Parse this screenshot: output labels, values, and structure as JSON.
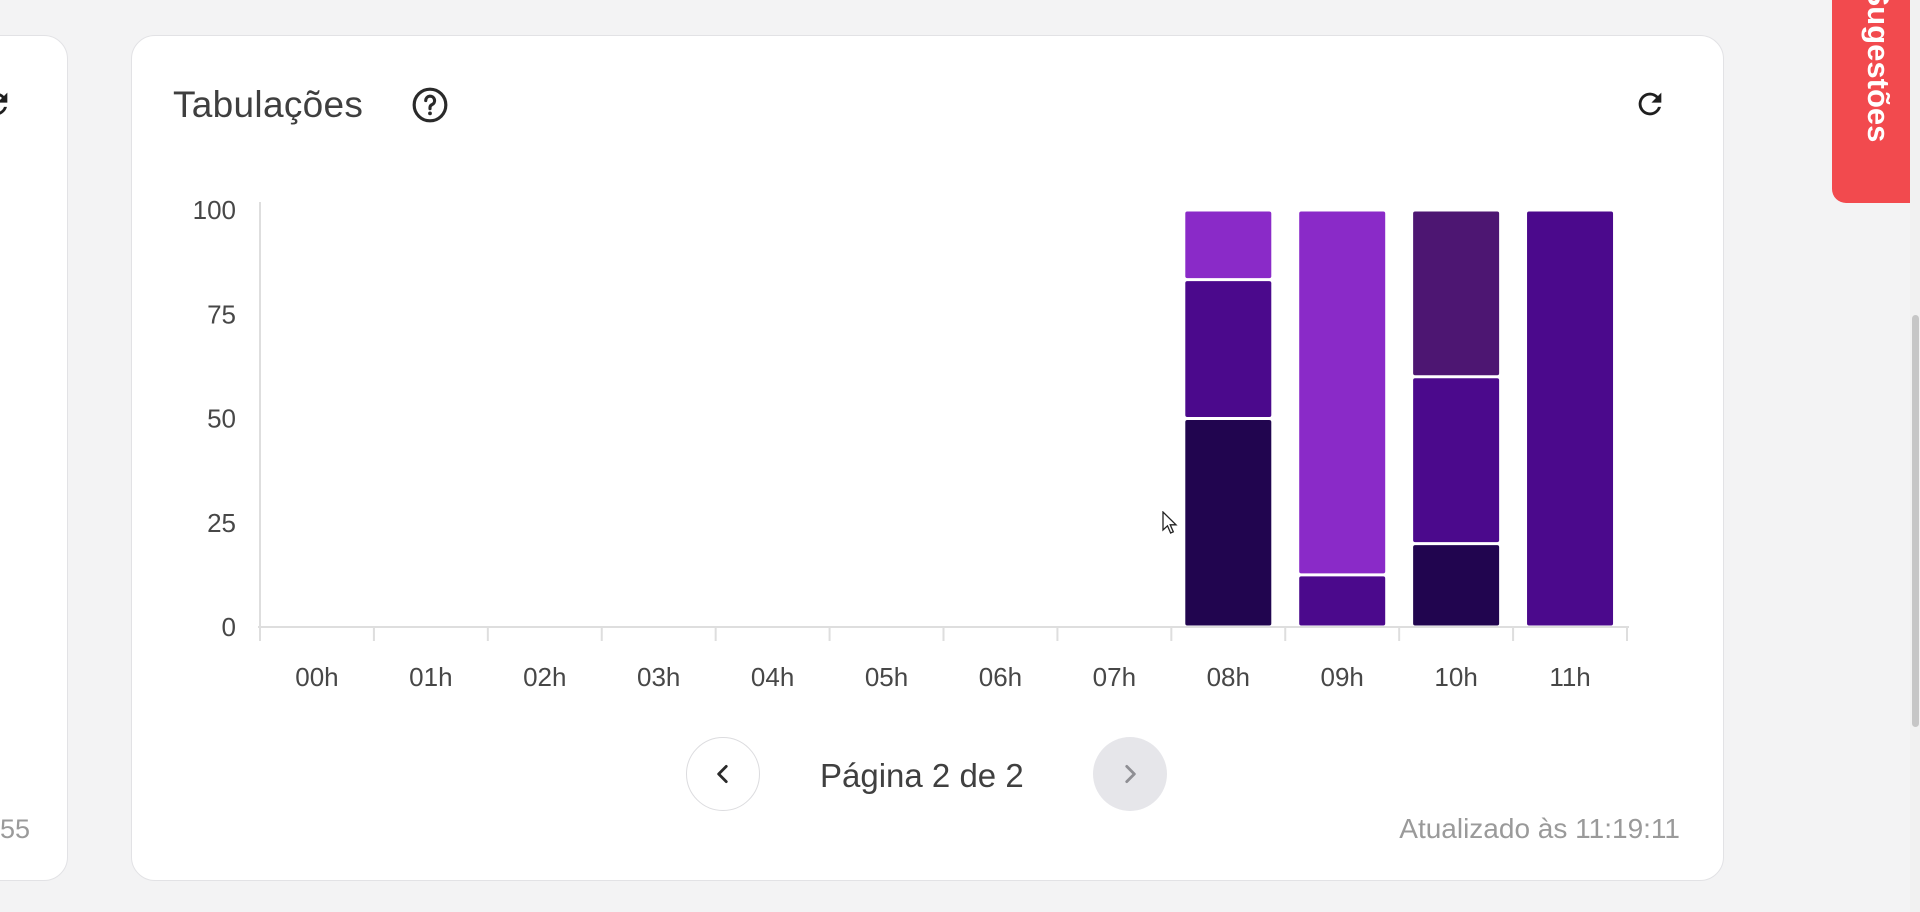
{
  "left_card": {
    "footer_text": "55"
  },
  "card": {
    "title": "Tabulações",
    "updated": "Atualizado às 11:19:11"
  },
  "pagination": {
    "label": "Página 2 de 2",
    "prev_icon": "chevron-left-icon",
    "next_icon": "chevron-right-icon",
    "next_disabled": true
  },
  "suggestions_tab": {
    "label": "Sugestões"
  },
  "icons": {
    "help": "question-circle-icon",
    "refresh": "refresh-icon"
  },
  "colors": {
    "accent": "#f24a4e",
    "series": [
      "#21054f",
      "#4b098c",
      "#8a2ac8",
      "#4d1672"
    ]
  },
  "chart_data": {
    "type": "bar",
    "stacked": true,
    "categories": [
      "00h",
      "01h",
      "02h",
      "03h",
      "04h",
      "05h",
      "06h",
      "07h",
      "08h",
      "09h",
      "10h",
      "11h"
    ],
    "ylim": [
      0,
      100
    ],
    "yticks": [
      0,
      25,
      50,
      75,
      100
    ],
    "grid": false,
    "stacks": [
      [],
      [],
      [],
      [],
      [],
      [],
      [],
      [],
      [
        {
          "value": 50,
          "color": "#21054f"
        },
        {
          "value": 33.3,
          "color": "#4b098c"
        },
        {
          "value": 16.7,
          "color": "#8a2ac8"
        }
      ],
      [
        {
          "value": 12.5,
          "color": "#4b098c"
        },
        {
          "value": 87.5,
          "color": "#8a2ac8"
        }
      ],
      [
        {
          "value": 20,
          "color": "#21054f"
        },
        {
          "value": 40,
          "color": "#4b098c"
        },
        {
          "value": 40,
          "color": "#4d1672"
        }
      ],
      [
        {
          "value": 100,
          "color": "#4b098c"
        }
      ]
    ]
  }
}
